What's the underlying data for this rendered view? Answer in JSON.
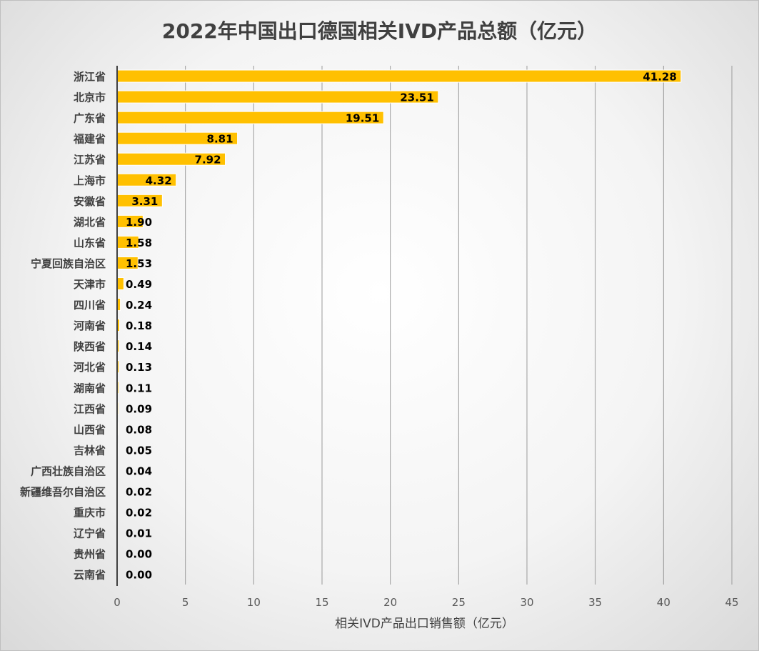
{
  "chart_data": {
    "type": "bar",
    "orientation": "horizontal",
    "title": "2022年中国出口德国相关IVD产品总额（亿元）",
    "xlabel": "相关IVD产品出口销售额（亿元）",
    "ylabel": "",
    "xlim": [
      0,
      45
    ],
    "xticks": [
      0,
      5,
      10,
      15,
      20,
      25,
      30,
      35,
      40,
      45
    ],
    "grid": true,
    "bar_color": "#FFC000",
    "categories": [
      "浙江省",
      "北京市",
      "广东省",
      "福建省",
      "江苏省",
      "上海市",
      "安徽省",
      "湖北省",
      "山东省",
      "宁夏回族自治区",
      "天津市",
      "四川省",
      "河南省",
      "陕西省",
      "河北省",
      "湖南省",
      "江西省",
      "山西省",
      "吉林省",
      "广西壮族自治区",
      "新疆维吾尔自治区",
      "重庆市",
      "辽宁省",
      "贵州省",
      "云南省"
    ],
    "values": [
      41.28,
      23.51,
      19.51,
      8.81,
      7.92,
      4.32,
      3.31,
      1.9,
      1.58,
      1.53,
      0.49,
      0.24,
      0.18,
      0.14,
      0.13,
      0.11,
      0.09,
      0.08,
      0.05,
      0.04,
      0.02,
      0.02,
      0.01,
      0.0,
      0.0
    ],
    "labels": [
      "41.28",
      "23.51",
      "19.51",
      "8.81",
      "7.92",
      "4.32",
      "3.31",
      "1.90",
      "1.58",
      "1.53",
      "0.49",
      "0.24",
      "0.18",
      "0.14",
      "0.13",
      "0.11",
      "0.09",
      "0.08",
      "0.05",
      "0.04",
      "0.02",
      "0.02",
      "0.01",
      "0.00",
      "0.00"
    ]
  }
}
